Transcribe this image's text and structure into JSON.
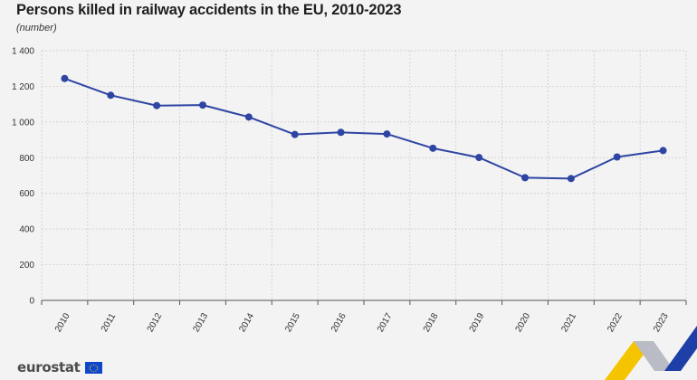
{
  "title": "Persons killed in railway accidents in the EU, 2010-2023",
  "subtitle": "(number)",
  "brand": {
    "logo_text": "eurostat"
  },
  "colors": {
    "line": "#2e45a3",
    "grid": "#cccccc",
    "background": "#f3f3f3",
    "accent_yellow": "#f5c400",
    "accent_blue": "#1f3fa8"
  },
  "chart_data": {
    "type": "line",
    "title": "Persons killed in railway accidents in the EU, 2010-2023",
    "subtitle": "(number)",
    "xlabel": "",
    "ylabel": "",
    "ylim": [
      0,
      1400
    ],
    "yticks": [
      0,
      200,
      400,
      600,
      800,
      1000,
      1200,
      1400
    ],
    "ytick_labels": [
      "0",
      "200",
      "400",
      "600",
      "800",
      "1 000",
      "1 200",
      "1 400"
    ],
    "categories": [
      "2010",
      "2011",
      "2012",
      "2013",
      "2014",
      "2015",
      "2016",
      "2017",
      "2018",
      "2019",
      "2020",
      "2021",
      "2022",
      "2023"
    ],
    "series": [
      {
        "values": [
          1244,
          1150,
          1092,
          1095,
          1028,
          930,
          942,
          933,
          853,
          801,
          688,
          683,
          804,
          840
        ]
      }
    ],
    "grid": true,
    "legend": "none"
  }
}
